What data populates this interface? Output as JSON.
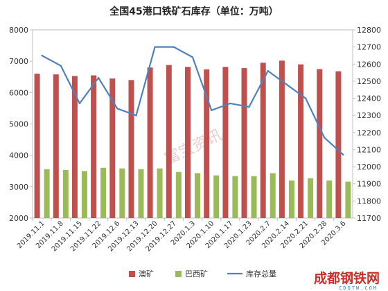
{
  "chart_data": {
    "type": "bar",
    "title": "全国45港口铁矿石库存（单位：万吨）",
    "categories": [
      "2019.11.1",
      "2019.11.8",
      "2019.11.15",
      "2019.11.22",
      "2019.12.6",
      "2019.12.13",
      "2019.12.20",
      "2019.12.27",
      "2020.1.3",
      "2020.1.10",
      "2020.1.17",
      "2020.1.23",
      "2020.2.7",
      "2020.2.14",
      "2020.2.21",
      "2020.2.28",
      "2020.3.6"
    ],
    "series": [
      {
        "name": "澳矿",
        "type": "bar",
        "axis": "left",
        "color": "#c0504d",
        "values": [
          6600,
          6580,
          6530,
          6550,
          6450,
          6400,
          6800,
          6880,
          6820,
          6740,
          6820,
          6780,
          6950,
          7020,
          6900,
          6750,
          6680
        ]
      },
      {
        "name": "巴西矿",
        "type": "bar",
        "axis": "left",
        "color": "#9bbb59",
        "values": [
          3560,
          3530,
          3500,
          3600,
          3580,
          3560,
          3580,
          3470,
          3430,
          3360,
          3340,
          3340,
          3430,
          3200,
          3270,
          3200,
          3160
        ]
      },
      {
        "name": "库存总量",
        "type": "line",
        "axis": "right",
        "color": "#4f81bd",
        "values": [
          12650,
          12590,
          12370,
          12520,
          12340,
          12300,
          12700,
          12700,
          12640,
          12330,
          12370,
          12350,
          12560,
          12480,
          12400,
          12170,
          12070
        ]
      }
    ],
    "y_left": {
      "min": 2000,
      "max": 8000,
      "ticks": [
        2000,
        3000,
        4000,
        5000,
        6000,
        7000,
        8000
      ]
    },
    "y_right": {
      "min": 11700,
      "max": 12800,
      "ticks": [
        11700,
        11800,
        11900,
        12000,
        12100,
        12200,
        12300,
        12400,
        12500,
        12600,
        12700,
        12800
      ]
    },
    "grid": false,
    "legend_position": "bottom"
  },
  "watermark": {
    "center_text": "富宝资讯",
    "corner_text": "成都钢铁网",
    "corner_sub": "CDGTW.COM"
  }
}
